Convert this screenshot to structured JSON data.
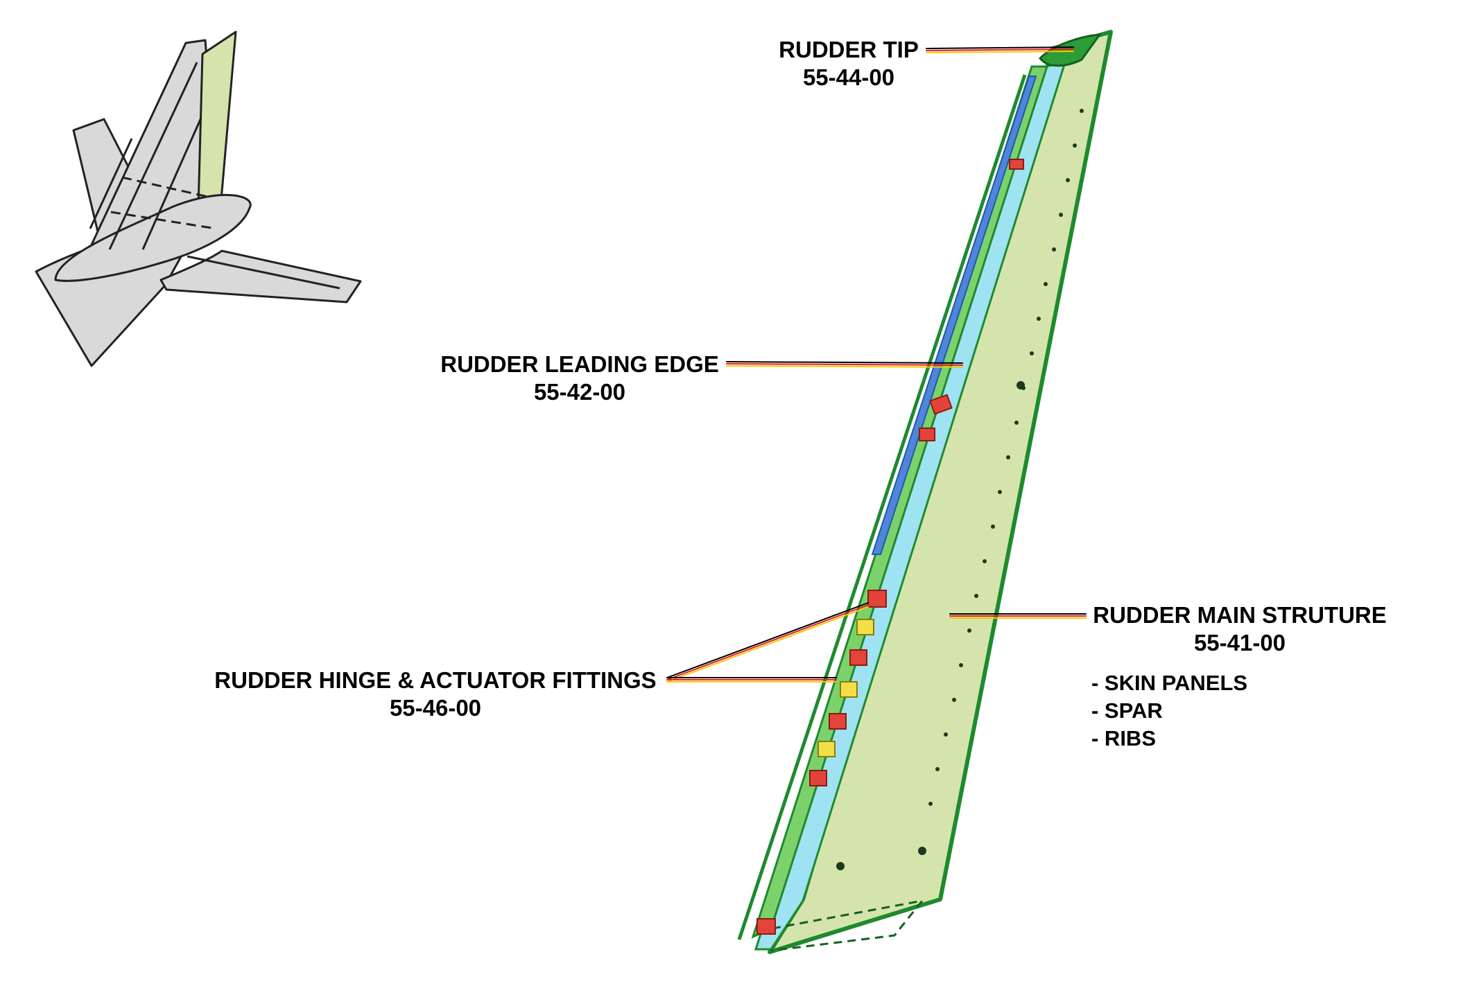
{
  "colors": {
    "rudder_skin": "#d5e4ad",
    "rudder_outline": "#1e8a2e",
    "leading_edge_cyan": "#9fe2f2",
    "leading_edge_blue": "#4f86d9",
    "fitting_red": "#e2443a",
    "fitting_yellow": "#f2df47",
    "tail_gray": "#d9d9d9",
    "leader_black": "#000000",
    "leader_red": "#e02020",
    "leader_yellow": "#f7c600"
  },
  "icons": [
    "tail-assembly-icon",
    "rudder-drawing"
  ],
  "labels": {
    "rudder_tip": {
      "title": "RUDDER TIP",
      "code": "55-44-00"
    },
    "leading_edge": {
      "title": "RUDDER LEADING EDGE",
      "code": "55-42-00"
    },
    "hinge_fittings": {
      "title": "RUDDER HINGE & ACTUATOR FITTINGS",
      "code": "55-46-00"
    },
    "main_structure": {
      "title": "RUDDER MAIN STRUTURE",
      "code": "55-41-00",
      "items": [
        "- SKIN PANELS",
        "- SPAR",
        "- RIBS"
      ]
    }
  }
}
